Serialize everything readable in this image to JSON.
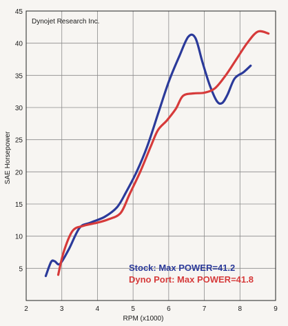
{
  "chart_data": {
    "type": "line",
    "title": "Dynojet Research Inc.",
    "xlabel": "RPM (x1000)",
    "ylabel": "SAE Horsepower",
    "xlim": [
      2,
      9
    ],
    "ylim": [
      0,
      45
    ],
    "x_ticks": [
      2,
      3,
      4,
      5,
      6,
      7,
      8,
      9
    ],
    "y_ticks": [
      0,
      5,
      10,
      15,
      20,
      25,
      30,
      35,
      40,
      45
    ],
    "x_tick_labels": [
      "2",
      "3",
      "4",
      "5",
      "6",
      "7",
      "8",
      "9"
    ],
    "y_tick_labels": [
      "",
      "5",
      "10",
      "15",
      "20",
      "25",
      "30",
      "35",
      "40",
      "45"
    ],
    "grid": true,
    "series": [
      {
        "name": "Stock",
        "color": "#2b3a9a",
        "points": [
          [
            2.55,
            3.8
          ],
          [
            2.7,
            6.0
          ],
          [
            2.8,
            6.1
          ],
          [
            2.95,
            5.7
          ],
          [
            3.2,
            8.0
          ],
          [
            3.5,
            11.3
          ],
          [
            3.8,
            12.1
          ],
          [
            4.2,
            13.0
          ],
          [
            4.55,
            14.5
          ],
          [
            4.8,
            16.8
          ],
          [
            5.1,
            20.0
          ],
          [
            5.4,
            24.0
          ],
          [
            5.7,
            29.0
          ],
          [
            6.0,
            34.0
          ],
          [
            6.3,
            38.0
          ],
          [
            6.55,
            41.0
          ],
          [
            6.75,
            40.8
          ],
          [
            6.95,
            37.0
          ],
          [
            7.15,
            33.5
          ],
          [
            7.35,
            31.0
          ],
          [
            7.5,
            30.7
          ],
          [
            7.65,
            32.0
          ],
          [
            7.85,
            34.5
          ],
          [
            8.1,
            35.5
          ],
          [
            8.3,
            36.5
          ]
        ],
        "legend_label": "Stock: Max POWER=41.2"
      },
      {
        "name": "Dyno Port",
        "color": "#d63a3a",
        "points": [
          [
            2.9,
            4.0
          ],
          [
            3.05,
            7.5
          ],
          [
            3.3,
            10.8
          ],
          [
            3.6,
            11.6
          ],
          [
            4.0,
            12.1
          ],
          [
            4.3,
            12.6
          ],
          [
            4.65,
            13.6
          ],
          [
            4.9,
            16.5
          ],
          [
            5.2,
            20.0
          ],
          [
            5.5,
            24.0
          ],
          [
            5.7,
            26.5
          ],
          [
            5.95,
            28.0
          ],
          [
            6.2,
            29.8
          ],
          [
            6.4,
            31.8
          ],
          [
            6.7,
            32.2
          ],
          [
            7.0,
            32.3
          ],
          [
            7.3,
            33.0
          ],
          [
            7.6,
            35.0
          ],
          [
            7.9,
            37.5
          ],
          [
            8.2,
            40.0
          ],
          [
            8.5,
            41.8
          ],
          [
            8.8,
            41.5
          ]
        ],
        "legend_label": "Dyno Port: Max POWER=41.8"
      }
    ]
  }
}
